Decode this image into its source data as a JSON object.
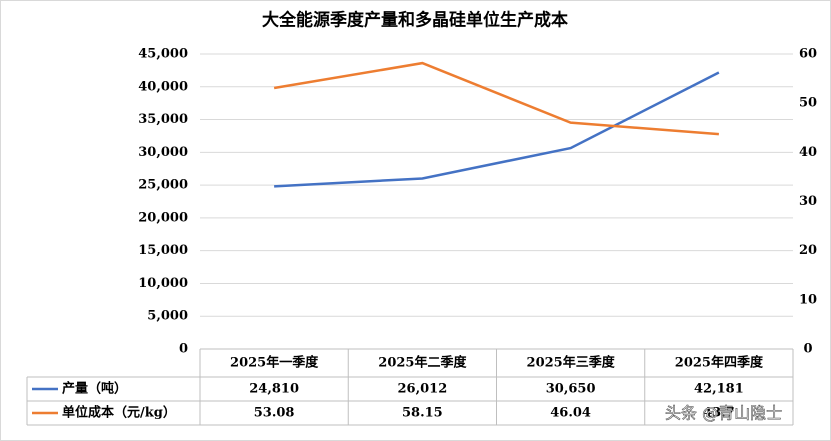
{
  "chart_data": {
    "type": "line",
    "title": "大全能源季度产量和多晶硅单位生产成本",
    "categories": [
      "2025年一季度",
      "2025年二季度",
      "2025年三季度",
      "2025年四季度"
    ],
    "series": [
      {
        "name": "产量（吨）",
        "color": "#4472c4",
        "values": [
          24810,
          26012,
          30650,
          42181
        ],
        "value_labels": [
          "24,810",
          "26,012",
          "30,650",
          "42,181"
        ]
      },
      {
        "name": "单位成本（元/kg）",
        "color": "#ed7d31",
        "axis": "y2",
        "values": [
          53.08,
          58.15,
          46.04,
          43.7
        ]
      }
    ],
    "ylim": [
      0,
      45000
    ],
    "yticks": [
      0,
      {
        "value": 5000,
        "label": "5,000"
      },
      {
        "value": 10000,
        "label": "10,000"
      },
      {
        "value": 15000,
        "label": "15,000"
      },
      {
        "value": 20000,
        "label": "20,000"
      },
      {
        "value": 25000,
        "label": "25,000"
      },
      {
        "value": 30000,
        "label": "30,000"
      },
      {
        "value": 35000,
        "label": "35,000"
      },
      {
        "value": 40000,
        "label": "40,000"
      },
      {
        "value": 45000,
        "label": "45,000"
      }
    ],
    "y2lim": [
      0,
      60
    ],
    "y2ticks": [
      0,
      10,
      20,
      30,
      40,
      50,
      60
    ],
    "grid": true
  },
  "watermark": "头条 @青山隐士"
}
